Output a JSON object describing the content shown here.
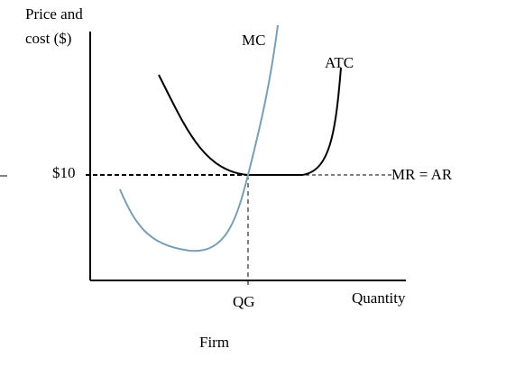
{
  "y_axis_label": [
    "Price and",
    "cost ($)"
  ],
  "curves": {
    "mc": "MC",
    "atc": "ATC"
  },
  "price_label": "$10",
  "line_label": "MR = AR",
  "quantity_label": "QG",
  "x_axis_label": "Quantity",
  "caption": "Firm"
}
